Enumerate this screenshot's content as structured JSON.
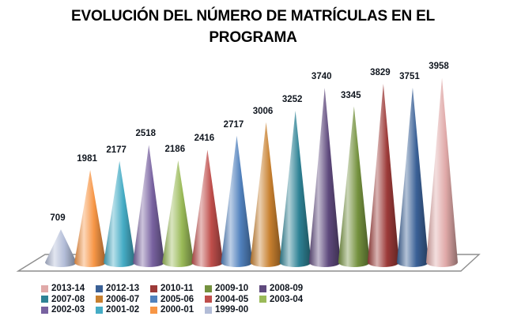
{
  "title": {
    "line1": "EVOLUCIÓN DEL NÚMERO DE MATRÍCULAS EN EL",
    "line2": "PROGRAMA"
  },
  "chart_data": {
    "type": "bar",
    "variant": "3d-cone",
    "title": "EVOLUCIÓN DEL NÚMERO DE MATRÍCULAS EN EL PROGRAMA",
    "xlabel": "",
    "ylabel": "",
    "axes_visible": false,
    "grid": false,
    "data_labels": true,
    "legend_position": "bottom",
    "legend_order": "newest-first",
    "categories": [
      "1999-00",
      "2000-01",
      "2001-02",
      "2002-03",
      "2003-04",
      "2004-05",
      "2005-06",
      "2006-07",
      "2007-08",
      "2008-09",
      "2009-10",
      "2010-11",
      "2012-13",
      "2013-14"
    ],
    "values": [
      709,
      1981,
      2177,
      2518,
      2186,
      2416,
      2717,
      3006,
      3252,
      3740,
      3345,
      3829,
      3751,
      3958
    ],
    "points": [
      {
        "year": "1999-00",
        "value": 709,
        "color": "#b2bcd7"
      },
      {
        "year": "2000-01",
        "value": 1981,
        "color": "#f79646"
      },
      {
        "year": "2001-02",
        "value": 2177,
        "color": "#45acc5"
      },
      {
        "year": "2002-03",
        "value": 2518,
        "color": "#7862a0"
      },
      {
        "year": "2003-04",
        "value": 2186,
        "color": "#9aba58"
      },
      {
        "year": "2004-05",
        "value": 2416,
        "color": "#bf4e4b"
      },
      {
        "year": "2005-06",
        "value": 2717,
        "color": "#5081bd"
      },
      {
        "year": "2006-07",
        "value": 3006,
        "color": "#c8802f"
      },
      {
        "year": "2007-08",
        "value": 3252,
        "color": "#2e8295"
      },
      {
        "year": "2008-09",
        "value": 3740,
        "color": "#5f4a7d"
      },
      {
        "year": "2009-10",
        "value": 3345,
        "color": "#74913e"
      },
      {
        "year": "2010-11",
        "value": 3829,
        "color": "#9c3a38"
      },
      {
        "year": "2012-13",
        "value": 3751,
        "color": "#3a6096"
      },
      {
        "year": "2013-14",
        "value": 3958,
        "color": "#e0a9a8"
      }
    ]
  },
  "colors": {
    "background": "#ffffff",
    "title_text": "#000000",
    "value_label_text": "#10161f",
    "legend_text": "#10161f",
    "floor_fill": "#ffffff",
    "floor_stroke": "#8e8e8e"
  }
}
